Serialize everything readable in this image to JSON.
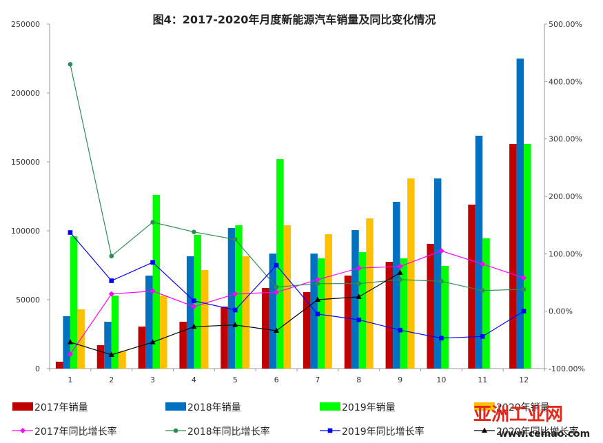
{
  "chart_data": {
    "type": "bar",
    "title": "图4：2017-2020年月度新能源汽车销量及同比变化情况",
    "categories": [
      "1",
      "2",
      "3",
      "4",
      "5",
      "6",
      "7",
      "8",
      "9",
      "10",
      "11",
      "12"
    ],
    "y_left": {
      "ylim": [
        0,
        250000
      ],
      "ticks": [
        "0",
        "50000",
        "100000",
        "150000",
        "200000",
        "250000"
      ]
    },
    "y_right": {
      "ylim": [
        -100,
        500
      ],
      "ticks": [
        "-100.00%",
        "0.00%",
        "100.00%",
        "200.00%",
        "300.00%",
        "400.00%",
        "500.00%"
      ]
    },
    "bar_series": [
      {
        "name": "2017年销量",
        "color": "#c00000",
        "values": [
          5000,
          17000,
          30500,
          34000,
          45000,
          58500,
          55500,
          67500,
          77500,
          90500,
          119000,
          163000
        ]
      },
      {
        "name": "2018年销量",
        "color": "#0070c0",
        "values": [
          38000,
          34000,
          67500,
          81500,
          102000,
          83500,
          83500,
          100500,
          121000,
          138000,
          169000,
          225000
        ]
      },
      {
        "name": "2019年销量",
        "color": "#00ff00",
        "values": [
          96000,
          53000,
          126000,
          97000,
          104000,
          152000,
          80000,
          84500,
          80000,
          74500,
          94500,
          163000
        ]
      },
      {
        "name": "2020年销量",
        "color": "#ffc000",
        "values": [
          43000,
          12500,
          53000,
          71500,
          81500,
          104000,
          97500,
          109000,
          138000,
          null,
          null,
          null
        ]
      }
    ],
    "line_series": [
      {
        "name": "2017年同比增长率",
        "color": "#ff00ff",
        "marker": "diamond",
        "values": [
          -75,
          30,
          35,
          8,
          30,
          33,
          55,
          75,
          78,
          105,
          82,
          58
        ]
      },
      {
        "name": "2018年同比增长率",
        "color": "#2e8b57",
        "marker": "circle",
        "values": [
          430,
          96,
          155,
          138,
          125,
          42,
          48,
          48,
          55,
          52,
          36,
          38
        ]
      },
      {
        "name": "2019年同比增长率",
        "color": "#0000ff",
        "marker": "square",
        "values": [
          137,
          53,
          85,
          18,
          2,
          80,
          -5,
          -15,
          -33,
          -47,
          -44,
          0
        ]
      },
      {
        "name": "2020年同比增长率",
        "color": "#000000",
        "marker": "triangle",
        "values": [
          -54,
          -76,
          -54,
          -27,
          -24,
          -34,
          20,
          25,
          67,
          null,
          null,
          null
        ]
      }
    ]
  },
  "watermark": {
    "title": "亚洲工业网",
    "url": "www.cemao.com"
  }
}
